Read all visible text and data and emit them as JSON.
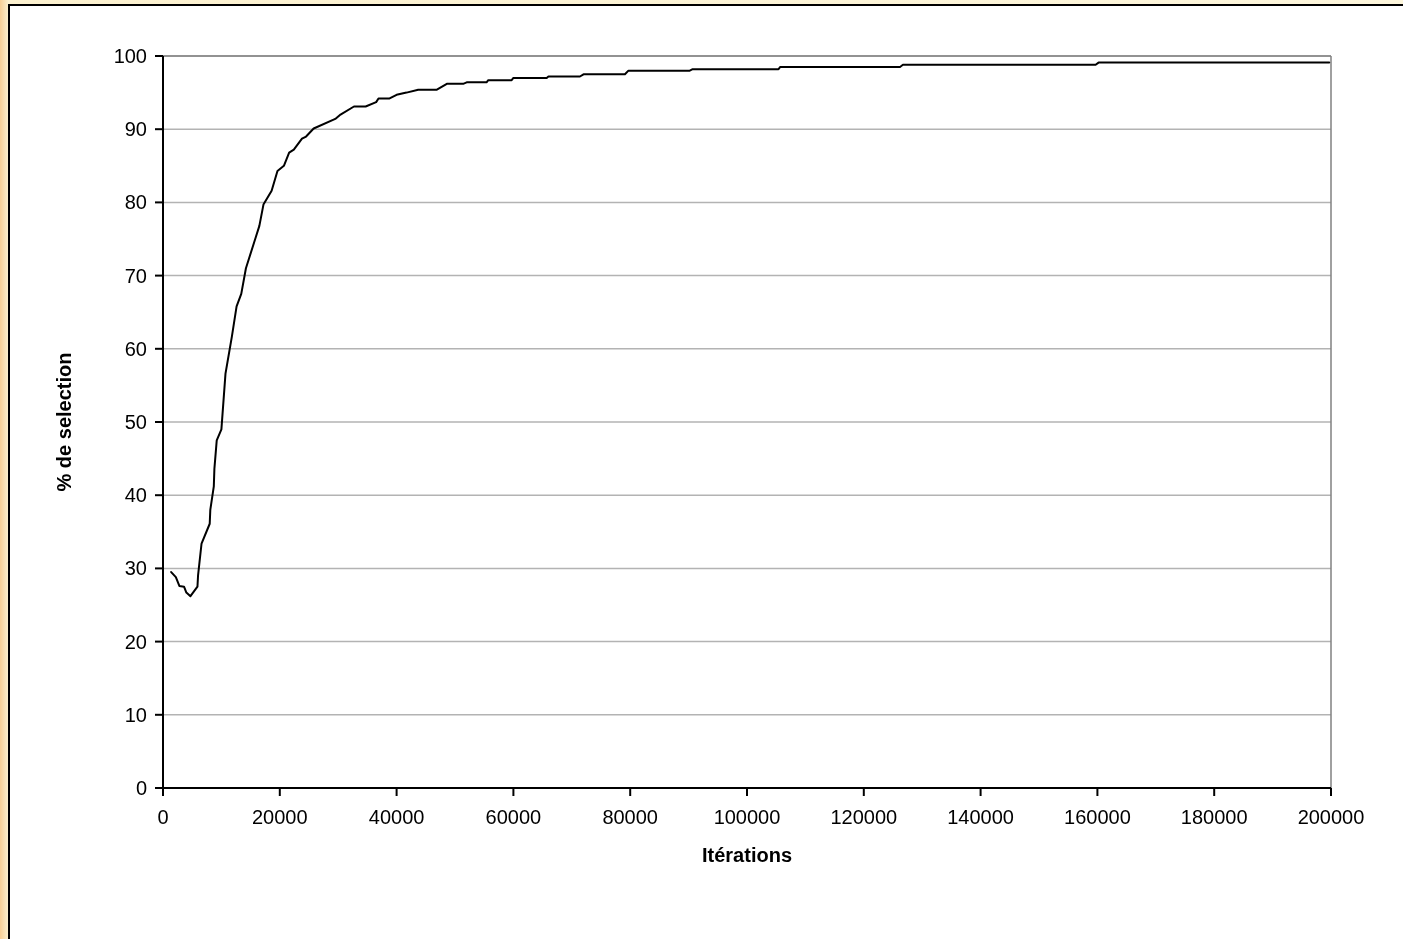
{
  "chart_data": {
    "type": "line",
    "xlabel": "Itérations",
    "ylabel": "% de selection",
    "xlim": [
      0,
      200000
    ],
    "xticks": [
      0,
      20000,
      40000,
      60000,
      80000,
      100000,
      120000,
      140000,
      160000,
      180000,
      200000
    ],
    "ylim": [
      0,
      100
    ],
    "yticks": [
      0,
      10,
      20,
      30,
      40,
      50,
      60,
      70,
      80,
      90,
      100
    ],
    "grid": "y",
    "marker": "none",
    "line_style": "solid",
    "series": [
      {
        "color": "#000000",
        "x": [
          1400,
          2200,
          2800,
          3600,
          4000,
          4700,
          5900,
          6000,
          6600,
          8000,
          8100,
          8700,
          8800,
          9200,
          10000,
          10700,
          11800,
          12600,
          13400,
          14200,
          16500,
          17200,
          18600,
          19600,
          20700,
          21600,
          22400,
          23800,
          24500,
          25800,
          29500,
          30400,
          32700,
          34700,
          36500,
          36900,
          38800,
          40000,
          41700,
          43700,
          46900,
          48600,
          51400,
          52000,
          55400,
          55700,
          59700,
          60000,
          65700,
          66000,
          71400,
          72000,
          79100,
          79700,
          90200,
          90700,
          105400,
          105700,
          126200,
          126700,
          159700,
          160200,
          199700
        ],
        "values": [
          29.5,
          28.8,
          27.6,
          27.5,
          26.7,
          26.2,
          27.5,
          29.0,
          33.4,
          36.1,
          38.0,
          41.2,
          43.6,
          47.5,
          49.0,
          56.6,
          61.7,
          65.8,
          67.5,
          71.0,
          76.8,
          79.7,
          81.6,
          84.3,
          85.0,
          86.8,
          87.2,
          88.7,
          89.0,
          90.1,
          91.4,
          92.0,
          93.1,
          93.1,
          93.7,
          94.2,
          94.2,
          94.7,
          95.0,
          95.4,
          95.4,
          96.2,
          96.2,
          96.4,
          96.4,
          96.7,
          96.7,
          97.0,
          97.0,
          97.2,
          97.2,
          97.5,
          97.5,
          98.0,
          98.0,
          98.2,
          98.2,
          98.5,
          98.5,
          98.8,
          98.8,
          99.1,
          99.1
        ]
      }
    ]
  }
}
